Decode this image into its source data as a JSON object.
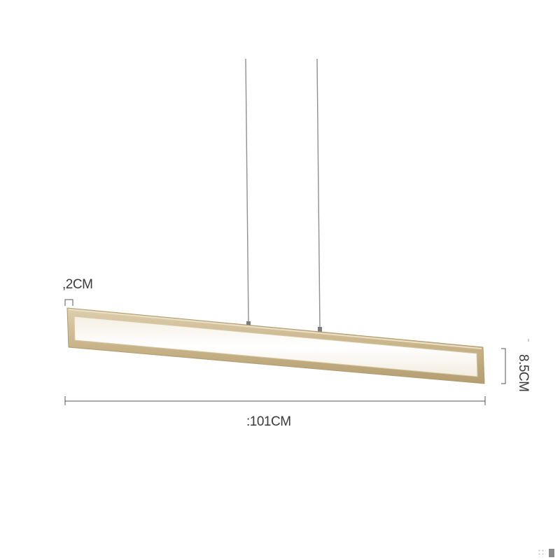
{
  "dimensions": {
    "thickness_label": ",2CM",
    "length_label": ":101CM",
    "height_label": "8.5CM"
  },
  "colors": {
    "frame_gold": "#c9b48a",
    "frame_highlight": "#e4d7b8",
    "frame_inner_glow": "#fbf8f1",
    "wire": "#8f8f8f",
    "dimension_line": "#555555",
    "text": "#3a3a3a"
  },
  "icons": {
    "corner_badge": "grid-dots-icon"
  }
}
